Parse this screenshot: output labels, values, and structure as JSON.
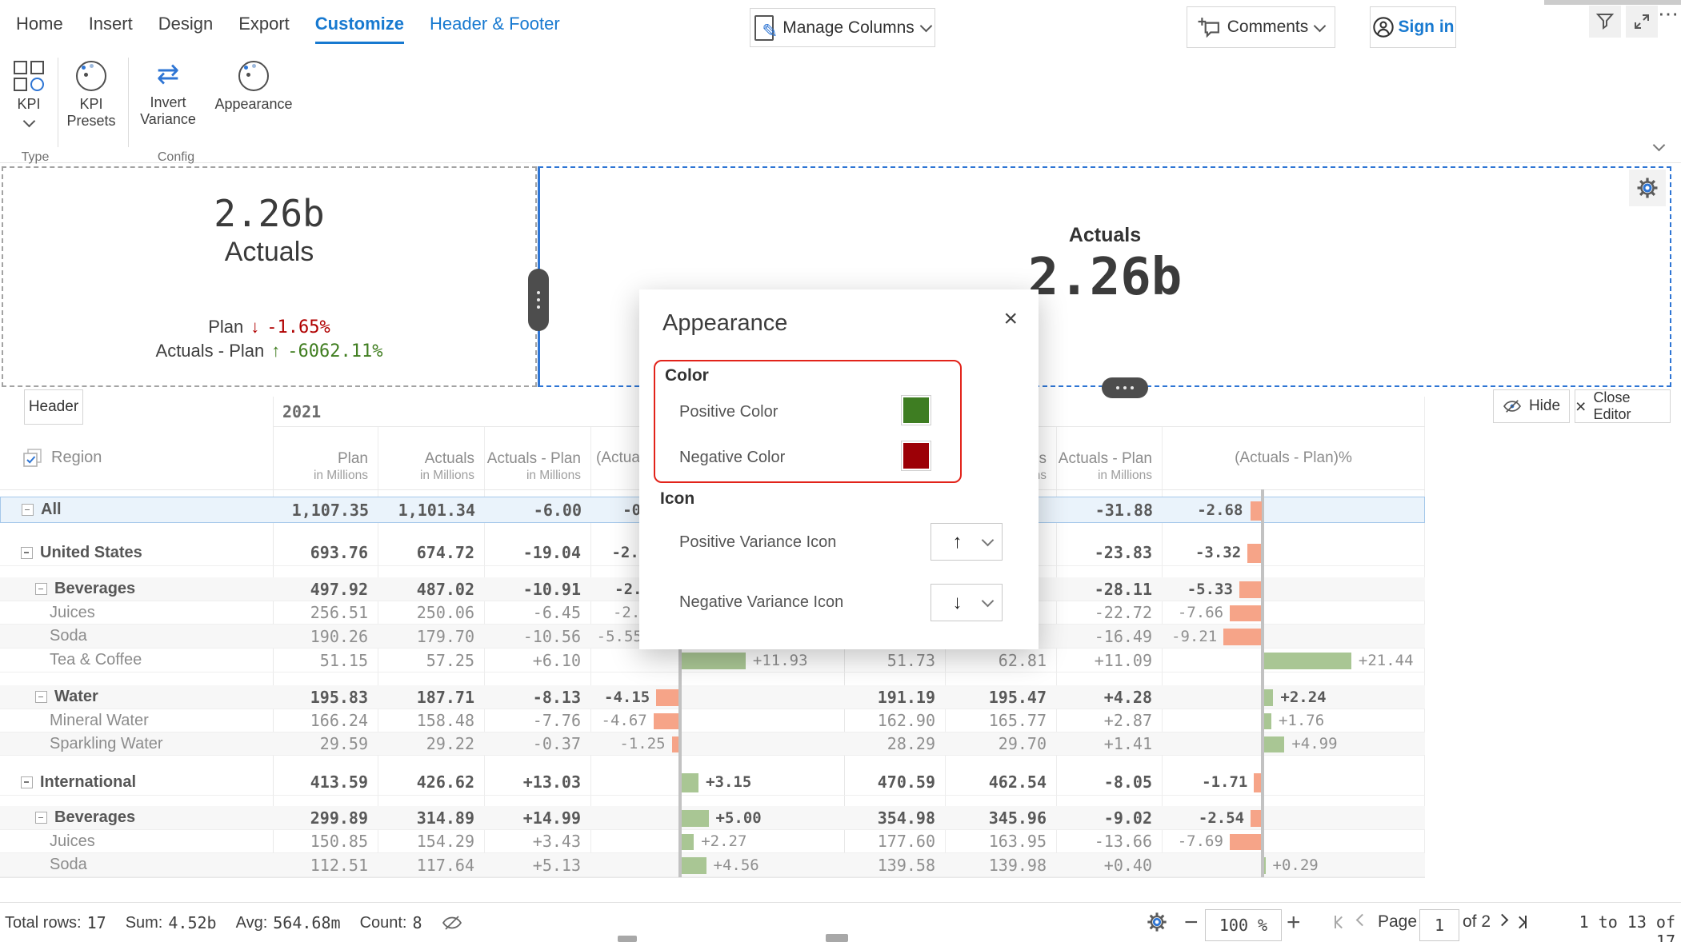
{
  "menu": {
    "tabs": [
      {
        "label": "Home"
      },
      {
        "label": "Insert"
      },
      {
        "label": "Design"
      },
      {
        "label": "Export"
      },
      {
        "label": "Customize"
      },
      {
        "label": "Header & Footer"
      }
    ],
    "manage_columns_label": "Manage Columns",
    "comments_label": "Comments",
    "sign_in_label": "Sign in"
  },
  "ribbon": {
    "kpi_label": "KPI",
    "kpi_presets_label": "KPI Presets",
    "invert_variance_label": "Invert Variance",
    "appearance_label": "Appearance",
    "type_group_label": "Type",
    "config_group_label": "Config"
  },
  "kpi_card": {
    "value": "2.26b",
    "label": "Actuals",
    "variances": [
      {
        "label": "Plan",
        "icon": "down-arrow",
        "value": "-1.65%",
        "sentiment": "negative"
      },
      {
        "label": "Actuals - Plan",
        "icon": "up-arrow",
        "value": "-6062.11%",
        "sentiment": "positive"
      }
    ]
  },
  "kpi_panel": {
    "title": "Actuals",
    "value": "2.26b"
  },
  "appearance_dialog": {
    "title": "Appearance",
    "color_section": {
      "label": "Color",
      "items": [
        {
          "label": "Positive Color",
          "color": "#3e7d22"
        },
        {
          "label": "Negative Color",
          "color": "#9c0006"
        }
      ]
    },
    "icon_section": {
      "label": "Icon",
      "items": [
        {
          "label": "Positive Variance Icon",
          "glyph": "↑"
        },
        {
          "label": "Negative Variance Icon",
          "glyph": "↓"
        }
      ]
    }
  },
  "editor_bar": {
    "header_tab": "Header",
    "hide_label": "Hide",
    "close_label": "Close Editor"
  },
  "table": {
    "group_header": "2021",
    "group2_header": "",
    "region_header": "Region",
    "columns": [
      {
        "title": "Plan",
        "sub": "in Millions"
      },
      {
        "title": "Actuals",
        "sub": "in Millions"
      },
      {
        "title": "Actuals - Plan",
        "sub": "in Millions"
      },
      {
        "title": "(Actuals - Plan)%",
        "sub": ""
      }
    ],
    "columns2": [
      {
        "title": "",
        "sub": ""
      },
      {
        "title": "Actuals",
        "sub": "in Millions"
      },
      {
        "title": "Actuals - Plan",
        "sub": "in Millions"
      },
      {
        "title": "(Actuals - Plan)%",
        "sub": ""
      }
    ],
    "rows": [
      {
        "n": "All",
        "lvl": 0,
        "exp": true,
        "grp": true,
        "alt": false,
        "sel": true,
        "p1": "1,107.35",
        "a1": "1,101.34",
        "v1": "-6.00",
        "pct1": "-0.54",
        "p2": "",
        "a2": "",
        "v2": "-31.88",
        "pct2": "-2.68"
      },
      {
        "n": "United States",
        "lvl": 0,
        "exp": true,
        "grp": true,
        "alt": false,
        "sel": false,
        "p1": "693.76",
        "a1": "674.72",
        "v1": "-19.04",
        "pct1": "-2.74",
        "p2": "",
        "a2": "",
        "v2": "-23.83",
        "pct2": "-3.32"
      },
      {
        "n": "Beverages",
        "lvl": 1,
        "exp": true,
        "grp": true,
        "alt": true,
        "sel": false,
        "p1": "497.92",
        "a1": "487.02",
        "v1": "-10.91",
        "pct1": "-2.19",
        "p2": "",
        "a2": "",
        "v2": "-28.11",
        "pct2": "-5.33"
      },
      {
        "n": "Juices",
        "lvl": 2,
        "exp": false,
        "grp": false,
        "alt": false,
        "sel": false,
        "p1": "256.51",
        "a1": "250.06",
        "v1": "-6.45",
        "pct1": "-2.51",
        "p2": "",
        "a2": "",
        "v2": "-22.72",
        "pct2": "-7.66"
      },
      {
        "n": "Soda",
        "lvl": 2,
        "exp": false,
        "grp": false,
        "alt": true,
        "sel": false,
        "p1": "190.26",
        "a1": "179.70",
        "v1": "-10.56",
        "pct1": "-5.55",
        "p2": "",
        "a2": "",
        "v2": "-16.49",
        "pct2": "-9.21"
      },
      {
        "n": "Tea & Coffee",
        "lvl": 2,
        "exp": false,
        "grp": false,
        "alt": false,
        "sel": false,
        "p1": "51.15",
        "a1": "57.25",
        "v1": "+6.10",
        "pct1": "+11.93",
        "p2": "51.73",
        "a2": "62.81",
        "v2": "+11.09",
        "pct2": "+21.44"
      },
      {
        "n": "Water",
        "lvl": 1,
        "exp": true,
        "grp": true,
        "alt": true,
        "sel": false,
        "p1": "195.83",
        "a1": "187.71",
        "v1": "-8.13",
        "pct1": "-4.15",
        "p2": "191.19",
        "a2": "195.47",
        "v2": "+4.28",
        "pct2": "+2.24"
      },
      {
        "n": "Mineral Water",
        "lvl": 2,
        "exp": false,
        "grp": false,
        "alt": false,
        "sel": false,
        "p1": "166.24",
        "a1": "158.48",
        "v1": "-7.76",
        "pct1": "-4.67",
        "p2": "162.90",
        "a2": "165.77",
        "v2": "+2.87",
        "pct2": "+1.76"
      },
      {
        "n": "Sparkling Water",
        "lvl": 2,
        "exp": false,
        "grp": false,
        "alt": true,
        "sel": false,
        "p1": "29.59",
        "a1": "29.22",
        "v1": "-0.37",
        "pct1": "-1.25",
        "p2": "28.29",
        "a2": "29.70",
        "v2": "+1.41",
        "pct2": "+4.99"
      },
      {
        "n": "International",
        "lvl": 0,
        "exp": true,
        "grp": true,
        "alt": false,
        "sel": false,
        "p1": "413.59",
        "a1": "426.62",
        "v1": "+13.03",
        "pct1": "+3.15",
        "p2": "470.59",
        "a2": "462.54",
        "v2": "-8.05",
        "pct2": "-1.71"
      },
      {
        "n": "Beverages",
        "lvl": 1,
        "exp": true,
        "grp": true,
        "alt": true,
        "sel": false,
        "p1": "299.89",
        "a1": "314.89",
        "v1": "+14.99",
        "pct1": "+5.00",
        "p2": "354.98",
        "a2": "345.96",
        "v2": "-9.02",
        "pct2": "-2.54"
      },
      {
        "n": "Juices",
        "lvl": 2,
        "exp": false,
        "grp": false,
        "alt": false,
        "sel": false,
        "p1": "150.85",
        "a1": "154.29",
        "v1": "+3.43",
        "pct1": "+2.27",
        "p2": "177.60",
        "a2": "163.95",
        "v2": "-13.66",
        "pct2": "-7.69"
      },
      {
        "n": "Soda",
        "lvl": 2,
        "exp": false,
        "grp": false,
        "alt": true,
        "sel": false,
        "p1": "112.51",
        "a1": "117.64",
        "v1": "+5.13",
        "pct1": "+4.56",
        "p2": "139.58",
        "a2": "139.98",
        "v2": "+0.40",
        "pct2": "+0.29"
      }
    ]
  },
  "statusbar": {
    "total_rows_label": "Total rows:",
    "total_rows_value": "17",
    "sum_label": "Sum:",
    "sum_value": "4.52b",
    "avg_label": "Avg:",
    "avg_value": "564.68m",
    "count_label": "Count:",
    "count_value": "8",
    "zoom_value": "100 %",
    "page_label": "Page",
    "page_value": "1",
    "page_of": "of 2",
    "range_text": "1 to 13 of 17"
  },
  "colors": {
    "accent": "#1779d0",
    "positive_bar": "#a9c694",
    "negative_bar": "#f6a488",
    "kpi_positive_text": "#3f7d1f",
    "kpi_negative_text": "#b00000",
    "callout_red": "#e2231a"
  }
}
